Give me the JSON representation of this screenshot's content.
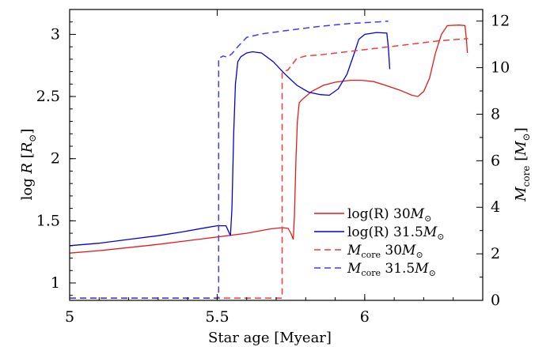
{
  "chart_data": {
    "type": "line",
    "xlabel": "Star age [Myear]",
    "ylabel_left": "log R [R⊙]",
    "ylabel_right": "Mcore [M⊙]",
    "xlim": [
      5.0,
      6.4
    ],
    "ylim_left": [
      0.86,
      3.2
    ],
    "ylim_right": [
      0,
      12.5
    ],
    "x_ticks": [
      5,
      5.5,
      6
    ],
    "x_tick_labels": [
      "5",
      "5.5",
      "6"
    ],
    "y_left_ticks": [
      1,
      1.5,
      2,
      2.5,
      3
    ],
    "y_left_tick_labels": [
      "1",
      "1.5",
      "2",
      "2.5",
      "3"
    ],
    "y_right_ticks": [
      0,
      2,
      4,
      6,
      8,
      10,
      12
    ],
    "y_right_tick_labels": [
      "0",
      "2",
      "4",
      "6",
      "8",
      "10",
      "12"
    ],
    "grid": false,
    "legend_position": "bottom-right",
    "series": [
      {
        "name": "log(R) 30M⊙",
        "axis": "left",
        "color": "#e41a1c",
        "dash": "solid",
        "points": [
          [
            5.0,
            1.24
          ],
          [
            5.1,
            1.26
          ],
          [
            5.2,
            1.285
          ],
          [
            5.3,
            1.31
          ],
          [
            5.4,
            1.34
          ],
          [
            5.5,
            1.37
          ],
          [
            5.6,
            1.4
          ],
          [
            5.68,
            1.435
          ],
          [
            5.72,
            1.445
          ],
          [
            5.74,
            1.44
          ],
          [
            5.75,
            1.4
          ],
          [
            5.758,
            1.35
          ],
          [
            5.762,
            1.55
          ],
          [
            5.767,
            2.0
          ],
          [
            5.772,
            2.3
          ],
          [
            5.778,
            2.45
          ],
          [
            5.79,
            2.48
          ],
          [
            5.82,
            2.54
          ],
          [
            5.86,
            2.59
          ],
          [
            5.9,
            2.615
          ],
          [
            5.95,
            2.63
          ],
          [
            5.99,
            2.63
          ],
          [
            6.03,
            2.62
          ],
          [
            6.07,
            2.59
          ],
          [
            6.12,
            2.55
          ],
          [
            6.16,
            2.51
          ],
          [
            6.18,
            2.5
          ],
          [
            6.2,
            2.54
          ],
          [
            6.22,
            2.65
          ],
          [
            6.24,
            2.85
          ],
          [
            6.26,
            3.0
          ],
          [
            6.28,
            3.07
          ],
          [
            6.32,
            3.075
          ],
          [
            6.34,
            3.07
          ],
          [
            6.345,
            2.95
          ],
          [
            6.348,
            2.85
          ]
        ]
      },
      {
        "name": "log(R) 31.5M⊙",
        "axis": "left",
        "color": "#0000e0",
        "dash": "solid",
        "points": [
          [
            5.0,
            1.3
          ],
          [
            5.1,
            1.32
          ],
          [
            5.2,
            1.35
          ],
          [
            5.3,
            1.38
          ],
          [
            5.38,
            1.41
          ],
          [
            5.45,
            1.44
          ],
          [
            5.5,
            1.46
          ],
          [
            5.53,
            1.46
          ],
          [
            5.545,
            1.38
          ],
          [
            5.55,
            1.6
          ],
          [
            5.556,
            2.2
          ],
          [
            5.562,
            2.6
          ],
          [
            5.57,
            2.78
          ],
          [
            5.58,
            2.82
          ],
          [
            5.6,
            2.85
          ],
          [
            5.62,
            2.86
          ],
          [
            5.65,
            2.85
          ],
          [
            5.69,
            2.78
          ],
          [
            5.73,
            2.68
          ],
          [
            5.77,
            2.59
          ],
          [
            5.81,
            2.535
          ],
          [
            5.85,
            2.515
          ],
          [
            5.88,
            2.51
          ],
          [
            5.91,
            2.56
          ],
          [
            5.94,
            2.68
          ],
          [
            5.965,
            2.85
          ],
          [
            5.98,
            2.96
          ],
          [
            6.0,
            3.0
          ],
          [
            6.04,
            3.015
          ],
          [
            6.075,
            3.01
          ],
          [
            6.08,
            2.9
          ],
          [
            6.085,
            2.72
          ]
        ]
      },
      {
        "name": "Mcore 30M⊙",
        "axis": "right",
        "color": "#f03c3c",
        "dash": "dashed",
        "points": [
          [
            5.0,
            0.1
          ],
          [
            5.3,
            0.1
          ],
          [
            5.6,
            0.1
          ],
          [
            5.72,
            0.1
          ],
          [
            5.72,
            9.8
          ],
          [
            5.74,
            9.9
          ],
          [
            5.77,
            10.4
          ],
          [
            5.8,
            10.5
          ],
          [
            5.85,
            10.55
          ],
          [
            5.95,
            10.7
          ],
          [
            6.05,
            10.85
          ],
          [
            6.15,
            11.0
          ],
          [
            6.25,
            11.15
          ],
          [
            6.35,
            11.25
          ]
        ]
      },
      {
        "name": "Mcore 31.5M⊙",
        "axis": "right",
        "color": "#3c3cf0",
        "dash": "dashed",
        "points": [
          [
            5.0,
            0.1
          ],
          [
            5.3,
            0.1
          ],
          [
            5.505,
            0.1
          ],
          [
            5.505,
            10.4
          ],
          [
            5.52,
            10.5
          ],
          [
            5.535,
            10.45
          ],
          [
            5.55,
            10.6
          ],
          [
            5.57,
            10.9
          ],
          [
            5.6,
            11.3
          ],
          [
            5.65,
            11.45
          ],
          [
            5.75,
            11.62
          ],
          [
            5.85,
            11.78
          ],
          [
            5.95,
            11.9
          ],
          [
            6.05,
            11.97
          ],
          [
            6.08,
            12.0
          ]
        ]
      }
    ],
    "legend": [
      {
        "label_main": "log(R) 30",
        "label_unit": "M",
        "label_sun": "⊙",
        "color": "#e41a1c",
        "dash": "solid"
      },
      {
        "label_main": "log(R) 31.5",
        "label_unit": "M",
        "label_sun": "⊙",
        "color": "#0000e0",
        "dash": "solid"
      },
      {
        "label_main": "M",
        "label_sub": "core",
        "label_tail": " 30",
        "label_unit": "M",
        "label_sun": "⊙",
        "color": "#f03c3c",
        "dash": "dashed"
      },
      {
        "label_main": "M",
        "label_sub": "core",
        "label_tail": " 31.5",
        "label_unit": "M",
        "label_sun": "⊙",
        "color": "#3c3cf0",
        "dash": "dashed"
      }
    ]
  }
}
